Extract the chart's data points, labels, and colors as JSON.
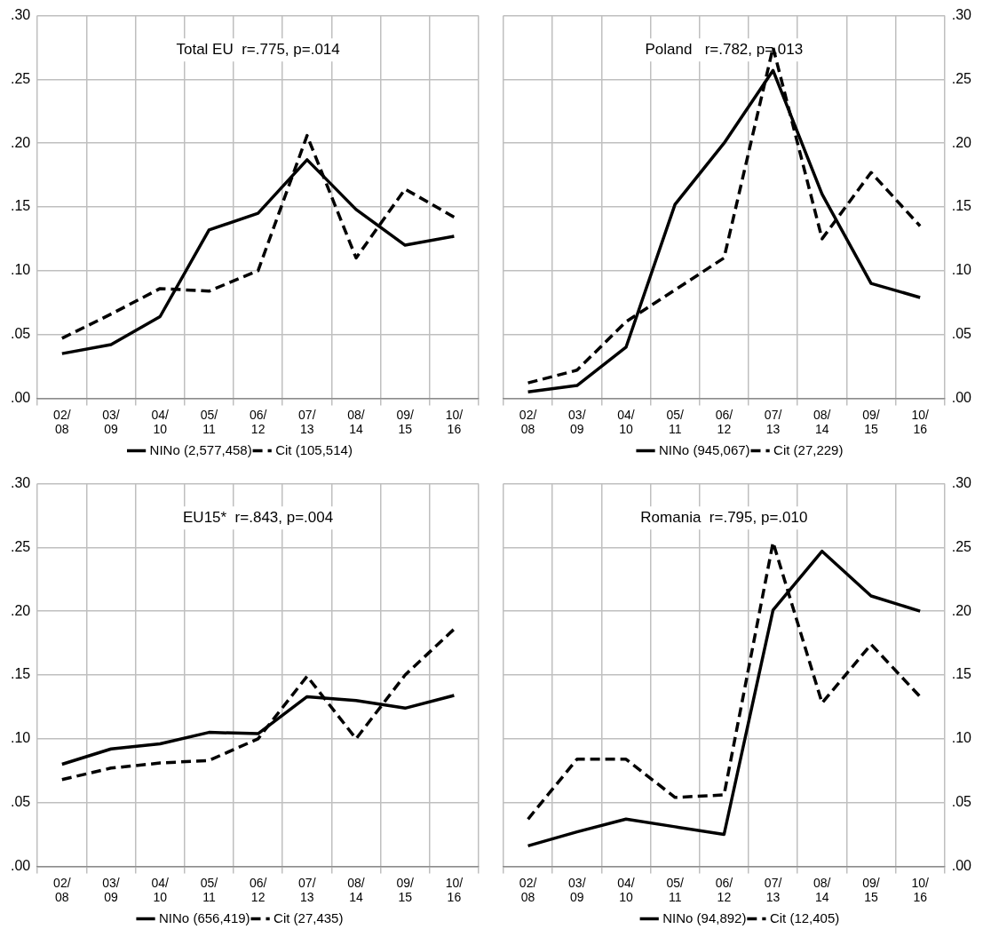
{
  "chart_data": [
    {
      "type": "line",
      "title": "Total EU  r=.775, p=.014",
      "categories": [
        "02/08",
        "03/09",
        "04/10",
        "05/11",
        "06/12",
        "07/13",
        "08/14",
        "09/15",
        "10/16"
      ],
      "ylim": [
        0,
        0.3
      ],
      "yticks": [
        {
          "value": 0,
          "label": ".00"
        },
        {
          "value": 0.05,
          "label": ".05"
        },
        {
          "value": 0.1,
          "label": ".10"
        },
        {
          "value": 0.15,
          "label": ".15"
        },
        {
          "value": 0.2,
          "label": ".20"
        },
        {
          "value": 0.25,
          "label": ".25"
        },
        {
          "value": 0.3,
          "label": ".30"
        }
      ],
      "grid": true,
      "legend": "bottom",
      "marker": "none",
      "series": [
        {
          "name": "NINo (2,577,458)",
          "color": "#000000",
          "line_style": "solid",
          "values": [
            0.035,
            0.042,
            0.064,
            0.132,
            0.145,
            0.187,
            0.148,
            0.12,
            0.127
          ]
        },
        {
          "name": "Cit (105,514)",
          "color": "#000000",
          "line_style": "dashed",
          "values": [
            0.047,
            0.066,
            0.086,
            0.084,
            0.1,
            0.206,
            0.11,
            0.164,
            0.142
          ]
        }
      ]
    },
    {
      "type": "line",
      "title": "Poland   r=.782, p=.013",
      "categories": [
        "02/08",
        "03/09",
        "04/10",
        "05/11",
        "06/12",
        "07/13",
        "08/14",
        "09/15",
        "10/16"
      ],
      "y2lim": [
        0,
        0.3
      ],
      "y2ticks": [
        {
          "value": 0,
          "label": ".00"
        },
        {
          "value": 0.05,
          "label": ".05"
        },
        {
          "value": 0.1,
          "label": ".10"
        },
        {
          "value": 0.15,
          "label": ".15"
        },
        {
          "value": 0.2,
          "label": ".20"
        },
        {
          "value": 0.25,
          "label": ".25"
        },
        {
          "value": 0.3,
          "label": ".30"
        }
      ],
      "grid": true,
      "legend": "bottom",
      "marker": "none",
      "series": [
        {
          "name": "NINo (945,067)",
          "color": "#000000",
          "line_style": "solid",
          "axis": "y2",
          "values": [
            0.005,
            0.01,
            0.04,
            0.152,
            0.2,
            0.257,
            0.16,
            0.09,
            0.079
          ]
        },
        {
          "name": "Cit (27,229)",
          "color": "#000000",
          "line_style": "dashed",
          "axis": "y2",
          "values": [
            0.012,
            0.022,
            0.06,
            0.085,
            0.11,
            0.275,
            0.125,
            0.177,
            0.135
          ]
        }
      ]
    },
    {
      "type": "line",
      "title": "EU15*  r=.843, p=.004",
      "categories": [
        "02/08",
        "03/09",
        "04/10",
        "05/11",
        "06/12",
        "07/13",
        "08/14",
        "09/15",
        "10/16"
      ],
      "ylim": [
        0,
        0.3
      ],
      "yticks": [
        {
          "value": 0,
          "label": ".00"
        },
        {
          "value": 0.05,
          "label": ".05"
        },
        {
          "value": 0.1,
          "label": ".10"
        },
        {
          "value": 0.15,
          "label": ".15"
        },
        {
          "value": 0.2,
          "label": ".20"
        },
        {
          "value": 0.25,
          "label": ".25"
        },
        {
          "value": 0.3,
          "label": ".30"
        }
      ],
      "grid": true,
      "legend": "bottom",
      "marker": "none",
      "series": [
        {
          "name": "NINo (656,419)",
          "color": "#000000",
          "line_style": "solid",
          "values": [
            0.08,
            0.092,
            0.096,
            0.105,
            0.104,
            0.133,
            0.13,
            0.124,
            0.134
          ]
        },
        {
          "name": "Cit (27,435)",
          "color": "#000000",
          "line_style": "dashed",
          "values": [
            0.068,
            0.077,
            0.081,
            0.083,
            0.1,
            0.149,
            0.1,
            0.15,
            0.186
          ]
        }
      ]
    },
    {
      "type": "line",
      "title": "Romania  r=.795, p=.010",
      "categories": [
        "02/08",
        "03/09",
        "04/10",
        "05/11",
        "06/12",
        "07/13",
        "08/14",
        "09/15",
        "10/16"
      ],
      "y2lim": [
        0,
        0.3
      ],
      "y2ticks": [
        {
          "value": 0,
          "label": ".00"
        },
        {
          "value": 0.05,
          "label": ".05"
        },
        {
          "value": 0.1,
          "label": ".10"
        },
        {
          "value": 0.15,
          "label": ".15"
        },
        {
          "value": 0.2,
          "label": ".20"
        },
        {
          "value": 0.25,
          "label": ".25"
        },
        {
          "value": 0.3,
          "label": ".30"
        }
      ],
      "grid": true,
      "legend": "bottom",
      "marker": "none",
      "series": [
        {
          "name": "NINo (94,892)",
          "color": "#000000",
          "line_style": "solid",
          "axis": "y2",
          "values": [
            0.016,
            0.027,
            0.037,
            0.031,
            0.025,
            0.201,
            0.247,
            0.212,
            0.2
          ]
        },
        {
          "name": "Cit (12,405)",
          "color": "#000000",
          "line_style": "dashed",
          "axis": "y2",
          "values": [
            0.037,
            0.084,
            0.084,
            0.054,
            0.056,
            0.254,
            0.128,
            0.174,
            0.133
          ]
        }
      ]
    }
  ]
}
